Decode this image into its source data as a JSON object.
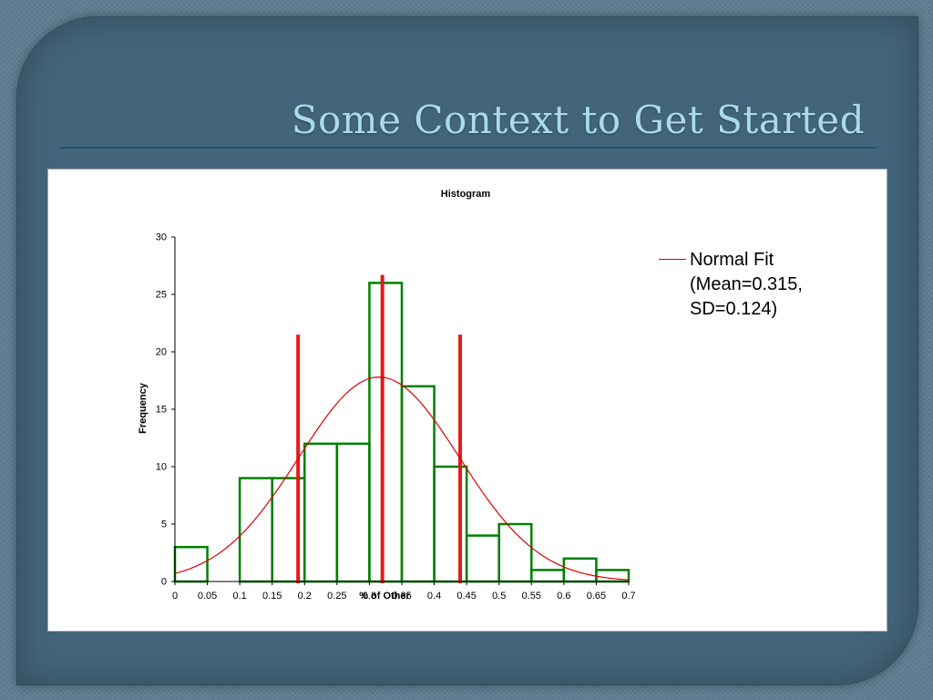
{
  "slide": {
    "title": "Some Context to Get Started"
  },
  "colors": {
    "slide_background": "#5e7d92",
    "panel": "#43657b",
    "title_text": "#a9dbe8",
    "title_rule": "#1e4f74",
    "histogram_bars": "#008000",
    "normal_fit": "#e00000",
    "marker_lines": "#e41a1a"
  },
  "chart_data": {
    "type": "bar",
    "title": "Histogram",
    "xlabel": "% of Other",
    "ylabel": "Frequency",
    "xlim": [
      0,
      0.7
    ],
    "ylim": [
      0,
      30
    ],
    "x_ticks": [
      "0",
      "0.05",
      "0.1",
      "0.15",
      "0.2",
      "0.25",
      "0.3",
      "0.35",
      "0.4",
      "0.45",
      "0.5",
      "0.55",
      "0.6",
      "0.65",
      "0.7"
    ],
    "y_ticks": [
      "0",
      "5",
      "10",
      "15",
      "20",
      "25",
      "30"
    ],
    "bins": [
      {
        "start": 0.0,
        "end": 0.05,
        "count": 3
      },
      {
        "start": 0.05,
        "end": 0.1,
        "count": 0
      },
      {
        "start": 0.1,
        "end": 0.15,
        "count": 9
      },
      {
        "start": 0.15,
        "end": 0.2,
        "count": 9
      },
      {
        "start": 0.2,
        "end": 0.25,
        "count": 12
      },
      {
        "start": 0.25,
        "end": 0.3,
        "count": 12
      },
      {
        "start": 0.3,
        "end": 0.35,
        "count": 26
      },
      {
        "start": 0.35,
        "end": 0.4,
        "count": 17
      },
      {
        "start": 0.4,
        "end": 0.45,
        "count": 10
      },
      {
        "start": 0.45,
        "end": 0.5,
        "count": 4
      },
      {
        "start": 0.5,
        "end": 0.55,
        "count": 5
      },
      {
        "start": 0.55,
        "end": 0.6,
        "count": 1
      },
      {
        "start": 0.6,
        "end": 0.65,
        "count": 2
      },
      {
        "start": 0.65,
        "end": 0.7,
        "count": 1
      }
    ],
    "normal_fit": {
      "legend": "Normal Fit (Mean=0.315, SD=0.124)",
      "mean": 0.315,
      "sd": 0.124,
      "peak": 17.8
    },
    "marker_lines": [
      {
        "x": 0.19,
        "y_top": 21.5
      },
      {
        "x": 0.32,
        "y_top": 26.7
      },
      {
        "x": 0.44,
        "y_top": 21.5
      }
    ],
    "grid": false,
    "legend_position": "right"
  }
}
